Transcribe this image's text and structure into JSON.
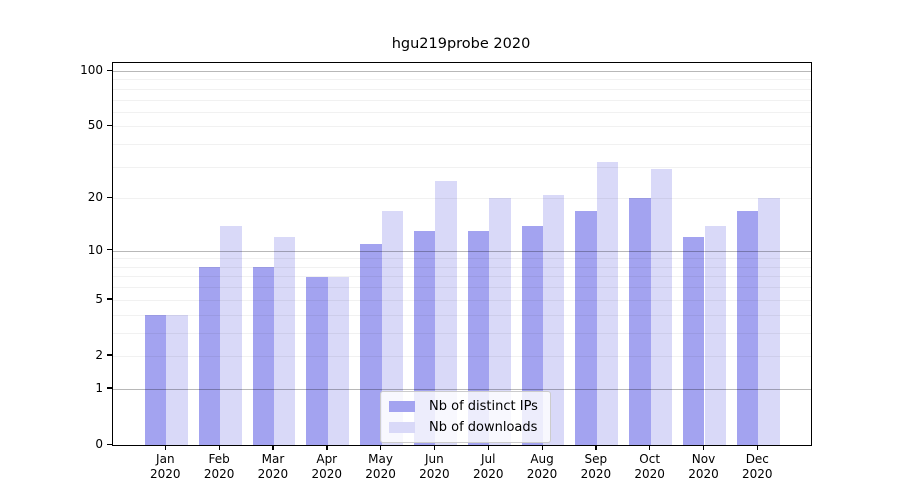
{
  "title": "hgu219probe 2020",
  "chart_data": {
    "type": "bar",
    "title": "hgu219probe 2020",
    "categories": [
      "Jan",
      "Feb",
      "Mar",
      "Apr",
      "May",
      "Jun",
      "Jul",
      "Aug",
      "Sep",
      "Oct",
      "Nov",
      "Dec"
    ],
    "category_year": "2020",
    "series": [
      {
        "name": "Nb of distinct IPs",
        "color": "#a3a3f0",
        "values": [
          4,
          8,
          8,
          7,
          11,
          13,
          13,
          14,
          17,
          20,
          12,
          17
        ]
      },
      {
        "name": "Nb of downloads",
        "color": "#d9d9f8",
        "values": [
          4,
          14,
          12,
          7,
          17,
          25,
          20,
          21,
          32,
          29,
          14,
          20
        ]
      }
    ],
    "yscale": "log1p",
    "ytick_values": [
      100,
      50,
      20,
      10,
      5,
      2,
      1,
      0
    ],
    "major_gridlines": [
      1,
      10,
      100
    ],
    "minor_gridlines": [
      2,
      3,
      4,
      5,
      6,
      7,
      8,
      9,
      20,
      30,
      40,
      50,
      60,
      70,
      80,
      90
    ],
    "ylim": [
      0,
      110
    ],
    "grid": true,
    "legend_position": "bottom-center",
    "axis_color": "#000000",
    "background_color": "#ffffff"
  }
}
